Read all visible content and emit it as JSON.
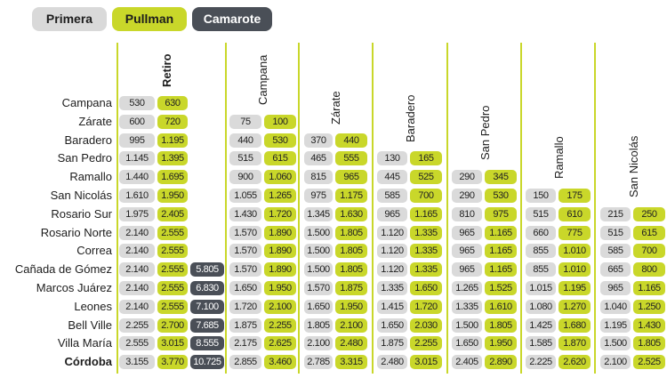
{
  "legend": [
    {
      "label": "Primera",
      "class": "primera"
    },
    {
      "label": "Pullman",
      "class": "pullman"
    },
    {
      "label": "Camarote",
      "class": "camarote"
    }
  ],
  "columns": [
    "Retiro",
    "Campana",
    "Zárate",
    "Baradero",
    "San Pedro",
    "Ramallo",
    "San Nicolás"
  ],
  "rows": [
    {
      "city": "Campana",
      "fares": [
        [
          "530",
          "630",
          null
        ]
      ]
    },
    {
      "city": "Zárate",
      "fares": [
        [
          "600",
          "720",
          null
        ],
        [
          "75",
          "100"
        ]
      ]
    },
    {
      "city": "Baradero",
      "fares": [
        [
          "995",
          "1.195",
          null
        ],
        [
          "440",
          "530"
        ],
        [
          "370",
          "440"
        ]
      ]
    },
    {
      "city": "San Pedro",
      "fares": [
        [
          "1.145",
          "1.395",
          null
        ],
        [
          "515",
          "615"
        ],
        [
          "465",
          "555"
        ],
        [
          "130",
          "165"
        ]
      ]
    },
    {
      "city": "Ramallo",
      "fares": [
        [
          "1.440",
          "1.695",
          null
        ],
        [
          "900",
          "1.060"
        ],
        [
          "815",
          "965"
        ],
        [
          "445",
          "525"
        ],
        [
          "290",
          "345"
        ]
      ]
    },
    {
      "city": "San Nicolás",
      "fares": [
        [
          "1.610",
          "1.950",
          null
        ],
        [
          "1.055",
          "1.265"
        ],
        [
          "975",
          "1.175"
        ],
        [
          "585",
          "700"
        ],
        [
          "290",
          "530"
        ],
        [
          "150",
          "175"
        ]
      ]
    },
    {
      "city": "Rosario Sur",
      "fares": [
        [
          "1.975",
          "2.405",
          null
        ],
        [
          "1.430",
          "1.720"
        ],
        [
          "1.345",
          "1.630"
        ],
        [
          "965",
          "1.165"
        ],
        [
          "810",
          "975"
        ],
        [
          "515",
          "610"
        ],
        [
          "215",
          "250"
        ]
      ]
    },
    {
      "city": "Rosario Norte",
      "fares": [
        [
          "2.140",
          "2.555",
          null
        ],
        [
          "1.570",
          "1.890"
        ],
        [
          "1.500",
          "1.805"
        ],
        [
          "1.120",
          "1.335"
        ],
        [
          "965",
          "1.165"
        ],
        [
          "660",
          "775"
        ],
        [
          "515",
          "615"
        ]
      ]
    },
    {
      "city": "Correa",
      "fares": [
        [
          "2.140",
          "2.555",
          null
        ],
        [
          "1.570",
          "1.890"
        ],
        [
          "1.500",
          "1.805"
        ],
        [
          "1.120",
          "1.335"
        ],
        [
          "965",
          "1.165"
        ],
        [
          "855",
          "1.010"
        ],
        [
          "585",
          "700"
        ]
      ]
    },
    {
      "city": "Cañada de Gómez",
      "fares": [
        [
          "2.140",
          "2.555",
          "5.805"
        ],
        [
          "1.570",
          "1.890"
        ],
        [
          "1.500",
          "1.805"
        ],
        [
          "1.120",
          "1.335"
        ],
        [
          "965",
          "1.165"
        ],
        [
          "855",
          "1.010"
        ],
        [
          "665",
          "800"
        ]
      ]
    },
    {
      "city": "Marcos Juárez",
      "fares": [
        [
          "2.140",
          "2.555",
          "6.830"
        ],
        [
          "1.650",
          "1.950"
        ],
        [
          "1.570",
          "1.875"
        ],
        [
          "1.335",
          "1.650"
        ],
        [
          "1.265",
          "1.525"
        ],
        [
          "1.015",
          "1.195"
        ],
        [
          "965",
          "1.165"
        ]
      ]
    },
    {
      "city": "Leones",
      "fares": [
        [
          "2.140",
          "2.555",
          "7.100"
        ],
        [
          "1.720",
          "2.100"
        ],
        [
          "1.650",
          "1.950"
        ],
        [
          "1.415",
          "1.720"
        ],
        [
          "1.335",
          "1.610"
        ],
        [
          "1.080",
          "1.270"
        ],
        [
          "1.040",
          "1.250"
        ]
      ]
    },
    {
      "city": "Bell Ville",
      "fares": [
        [
          "2.255",
          "2.700",
          "7.685"
        ],
        [
          "1.875",
          "2.255"
        ],
        [
          "1.805",
          "2.100"
        ],
        [
          "1.650",
          "2.030"
        ],
        [
          "1.500",
          "1.805"
        ],
        [
          "1.425",
          "1.680"
        ],
        [
          "1.195",
          "1.430"
        ]
      ]
    },
    {
      "city": "Villa María",
      "fares": [
        [
          "2.555",
          "3.015",
          "8.555"
        ],
        [
          "2.175",
          "2.625"
        ],
        [
          "2.100",
          "2.480"
        ],
        [
          "1.875",
          "2.255"
        ],
        [
          "1.650",
          "1.950"
        ],
        [
          "1.585",
          "1.870"
        ],
        [
          "1.500",
          "1.805"
        ]
      ]
    },
    {
      "city": "Córdoba",
      "fares": [
        [
          "3.155",
          "3.770",
          "10.725"
        ],
        [
          "2.855",
          "3.460"
        ],
        [
          "2.785",
          "3.315"
        ],
        [
          "2.480",
          "3.015"
        ],
        [
          "2.405",
          "2.890"
        ],
        [
          "2.225",
          "2.620"
        ],
        [
          "2.100",
          "2.525"
        ]
      ]
    }
  ]
}
